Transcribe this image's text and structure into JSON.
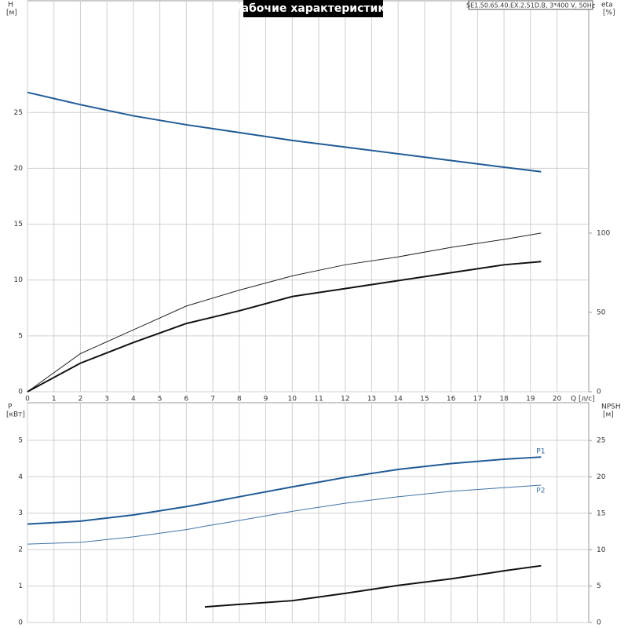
{
  "chart_data": [
    {
      "type": "line",
      "title": "Рабочие характеристики",
      "subtitle": "SE1.50.65.40.EX.2.51D.B, 3*400 V, 50Hz",
      "ylabel": "H",
      "ylabel_unit": "[м]",
      "y2label": "eta",
      "y2label_unit": "[%]",
      "xlabel": "Q [л/с]",
      "xlim": [
        0,
        21.2
      ],
      "xticks": [
        0,
        1,
        2,
        3,
        4,
        5,
        6,
        7,
        8,
        9,
        10,
        11,
        12,
        13,
        14,
        15,
        16,
        17,
        18,
        19,
        20
      ],
      "xtick_labels": true,
      "ylim": [
        0,
        35
      ],
      "yticks": [
        0,
        5,
        10,
        15,
        20,
        25
      ],
      "y2lim": [
        0,
        246.4
      ],
      "y2ticks": [
        0,
        50,
        100
      ],
      "grid": true,
      "x": [
        0,
        2,
        4,
        6,
        8,
        10,
        12,
        14,
        16,
        18,
        19.4
      ],
      "series": [
        {
          "color": "#1f5a96",
          "width": 2,
          "values": [
            26.8,
            25.7,
            24.7,
            23.9,
            23.2,
            22.5,
            21.9,
            21.3,
            20.7,
            20.1,
            19.7
          ]
        },
        {
          "color": "#222222",
          "width": 1,
          "axis": "y2",
          "values": [
            0,
            24,
            39,
            54,
            64,
            73,
            80,
            85,
            91,
            96,
            100
          ]
        },
        {
          "color": "#111111",
          "width": 2,
          "axis": "y2",
          "values": [
            0,
            18,
            31,
            43,
            51,
            60,
            65,
            70,
            75,
            80,
            82
          ]
        }
      ]
    },
    {
      "type": "line",
      "ylabel": "P",
      "ylabel_unit": "[кВт]",
      "y2label": "NPSH",
      "y2label_unit": "[м]",
      "xlim": [
        0,
        21.2
      ],
      "xticks": [
        0,
        1,
        2,
        3,
        4,
        5,
        6,
        7,
        8,
        9,
        10,
        11,
        12,
        13,
        14,
        15,
        16,
        17,
        18,
        19,
        20
      ],
      "xtick_labels": false,
      "ylim": [
        0,
        6.03
      ],
      "yticks": [
        0,
        1,
        2,
        3,
        4,
        5
      ],
      "y2lim": [
        0,
        30.2
      ],
      "y2ticks": [
        0,
        5,
        10,
        15,
        20,
        25
      ],
      "grid": true,
      "x": [
        0,
        2,
        4,
        6,
        6.7,
        8,
        10,
        12,
        14,
        16,
        18,
        19.4
      ],
      "series": [
        {
          "name": "P1",
          "color": "#1f5a96",
          "width": 2,
          "values": [
            2.7,
            2.78,
            2.95,
            3.18,
            3.27,
            3.45,
            3.72,
            3.98,
            4.2,
            4.36,
            4.48,
            4.54
          ]
        },
        {
          "name": "P2",
          "color": "#3f73a8",
          "width": 1,
          "values": [
            2.15,
            2.2,
            2.35,
            2.55,
            2.64,
            2.8,
            3.05,
            3.27,
            3.45,
            3.6,
            3.7,
            3.77
          ]
        },
        {
          "color": "#111111",
          "width": 2,
          "axis": "y2",
          "values": [
            null,
            null,
            null,
            null,
            2.15,
            2.5,
            3.0,
            4.0,
            5.1,
            6.0,
            7.1,
            7.8
          ]
        }
      ]
    }
  ]
}
